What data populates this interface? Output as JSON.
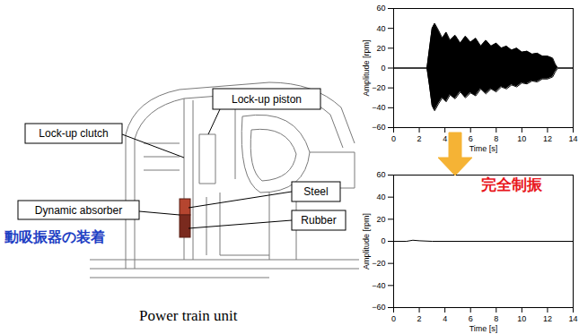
{
  "chart_data": [
    {
      "type": "area",
      "x_label": "Time [s]",
      "y_label": "Amplitude [rpm]",
      "x": [
        0,
        2.6,
        2.8,
        3.0,
        3.2,
        3.5,
        3.8,
        4.1,
        4.4,
        4.8,
        5.2,
        5.6,
        6.0,
        6.4,
        6.8,
        7.2,
        7.6,
        8.0,
        8.4,
        8.8,
        9.2,
        9.6,
        10.0,
        10.4,
        10.8,
        11.2,
        11.6,
        12.0,
        12.4,
        12.6,
        12.8,
        14
      ],
      "upper": [
        0,
        0,
        20,
        40,
        45,
        38,
        30,
        36,
        28,
        33,
        25,
        32,
        26,
        30,
        22,
        28,
        22,
        25,
        20,
        22,
        18,
        20,
        16,
        17,
        14,
        15,
        12,
        12,
        10,
        4,
        0,
        0
      ],
      "lower": [
        0,
        0,
        -18,
        -38,
        -43,
        -36,
        -30,
        -34,
        -27,
        -31,
        -24,
        -30,
        -25,
        -28,
        -21,
        -26,
        -21,
        -24,
        -19,
        -21,
        -17,
        -19,
        -15,
        -16,
        -13,
        -14,
        -11,
        -11,
        -9,
        -4,
        0,
        0
      ],
      "color": "#000000",
      "xlim": [
        0,
        14
      ],
      "xticks": [
        0,
        2,
        4,
        6,
        8,
        10,
        12,
        14
      ],
      "ylim": [
        -60,
        60
      ],
      "yticks": [
        -60,
        -40,
        -20,
        0,
        20,
        40,
        60
      ],
      "grid": false
    },
    {
      "type": "line",
      "x_label": "Time [s]",
      "y_label": "Amplitude [rpm]",
      "x": [
        0,
        1,
        1.5,
        2,
        3,
        14
      ],
      "values": [
        0,
        0,
        1,
        0.5,
        0,
        0
      ],
      "color": "#000000",
      "xlim": [
        0,
        14
      ],
      "xticks": [
        0,
        2,
        4,
        6,
        8,
        10,
        12,
        14
      ],
      "ylim": [
        -60,
        60
      ],
      "yticks": [
        -60,
        -40,
        -20,
        0,
        20,
        40,
        60
      ],
      "grid": false
    }
  ],
  "diagram": {
    "callouts": [
      "Lock-up piston",
      "Lock-up clutch",
      "Steel",
      "Dynamic absorber",
      "Rubber"
    ],
    "note": "動吸振器の装着",
    "caption": "Power train unit"
  },
  "result_note": "完全制振"
}
